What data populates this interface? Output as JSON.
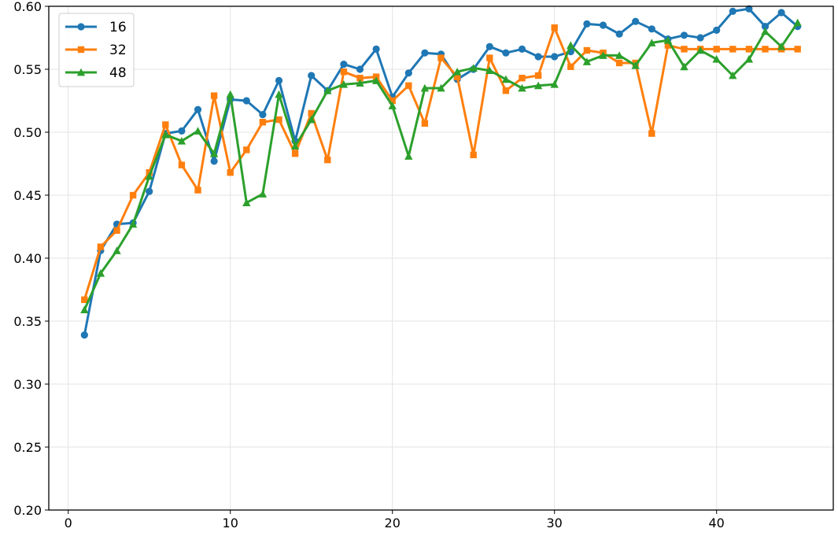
{
  "chart_data": {
    "type": "line",
    "title": "",
    "xlabel": "",
    "ylabel": "",
    "xlim": [
      -1.2,
      47.2
    ],
    "ylim": [
      0.2,
      0.6
    ],
    "xticks": [
      0,
      10,
      20,
      30,
      40
    ],
    "yticks": [
      0.2,
      0.25,
      0.3,
      0.35,
      0.4,
      0.45,
      0.5,
      0.55,
      0.6
    ],
    "ytick_labels": [
      "0.20",
      "0.25",
      "0.30",
      "0.35",
      "0.40",
      "0.45",
      "0.50",
      "0.55",
      "0.60"
    ],
    "grid": true,
    "legend_position": "top-left",
    "x": [
      1,
      2,
      3,
      4,
      5,
      6,
      7,
      8,
      9,
      10,
      11,
      12,
      13,
      14,
      15,
      16,
      17,
      18,
      19,
      20,
      21,
      22,
      23,
      24,
      25,
      26,
      27,
      28,
      29,
      30,
      31,
      32,
      33,
      34,
      35,
      36,
      37,
      38,
      39,
      40,
      41,
      42,
      43,
      44,
      45
    ],
    "series": [
      {
        "name": "16",
        "color": "#1f77b4",
        "marker": "circle",
        "values": [
          0.339,
          0.406,
          0.427,
          0.428,
          0.453,
          0.499,
          0.501,
          0.518,
          0.477,
          0.526,
          0.525,
          0.514,
          0.541,
          0.493,
          0.545,
          0.533,
          0.554,
          0.55,
          0.566,
          0.528,
          0.547,
          0.563,
          0.562,
          0.542,
          0.55,
          0.568,
          0.563,
          0.566,
          0.56,
          0.56,
          0.564,
          0.586,
          0.585,
          0.578,
          0.588,
          0.582,
          0.574,
          0.577,
          0.575,
          0.581,
          0.596,
          0.598,
          0.584,
          0.595,
          0.584
        ]
      },
      {
        "name": "32",
        "color": "#ff7f0e",
        "marker": "square",
        "values": [
          0.367,
          0.409,
          0.422,
          0.45,
          0.468,
          0.506,
          0.474,
          0.454,
          0.529,
          0.468,
          0.486,
          0.508,
          0.51,
          0.483,
          0.515,
          0.478,
          0.548,
          0.543,
          0.544,
          0.525,
          0.537,
          0.507,
          0.559,
          0.544,
          0.482,
          0.559,
          0.533,
          0.543,
          0.545,
          0.583,
          0.552,
          0.565,
          0.563,
          0.555,
          0.555,
          0.499,
          0.569,
          0.566,
          0.566,
          0.566,
          0.566,
          0.566,
          0.566,
          0.566,
          0.566
        ]
      },
      {
        "name": "48",
        "color": "#2ca02c",
        "marker": "triangle",
        "values": [
          0.359,
          0.388,
          0.406,
          0.427,
          0.465,
          0.498,
          0.493,
          0.501,
          0.483,
          0.53,
          0.444,
          0.451,
          0.53,
          0.489,
          0.51,
          0.533,
          0.538,
          0.539,
          0.541,
          0.521,
          0.481,
          0.535,
          0.535,
          0.548,
          0.551,
          0.549,
          0.542,
          0.535,
          0.537,
          0.538,
          0.569,
          0.556,
          0.561,
          0.561,
          0.553,
          0.571,
          0.573,
          0.552,
          0.565,
          0.558,
          0.545,
          0.558,
          0.58,
          0.568,
          0.587
        ]
      }
    ]
  }
}
